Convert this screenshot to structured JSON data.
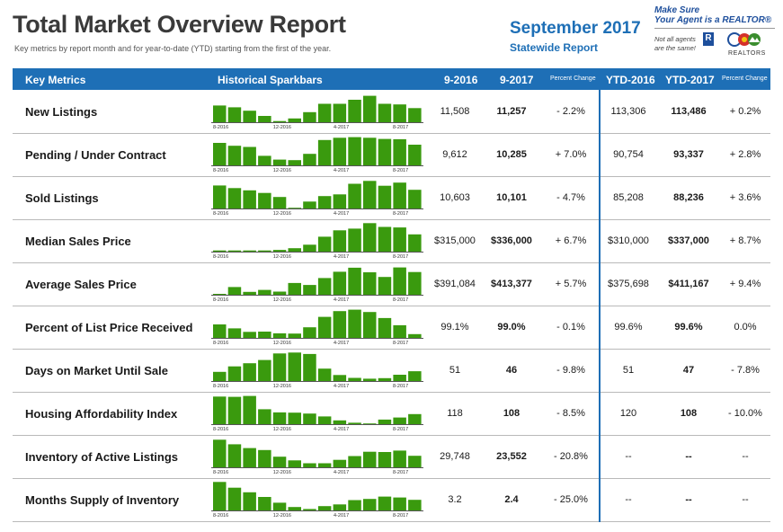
{
  "header": {
    "title": "Total Market Overview Report",
    "subtitle": "Key metrics by report month and for year-to-date (YTD) starting from the first of the year.",
    "month": "September 2017",
    "region": "Statewide Report"
  },
  "brand": {
    "line1": "Make Sure",
    "line2": "Your Agent is a REALTOR®",
    "note_line1": "Not all agents",
    "note_line2": "are the same!",
    "r_mark": "R",
    "association": "REALTORS"
  },
  "columns": {
    "metric": "Key Metrics",
    "spark": "Historical Sparkbars",
    "col_prev": "9-2016",
    "col_curr": "9-2017",
    "col_pct": "Percent Change",
    "ytd_prev": "YTD-2016",
    "ytd_curr": "YTD-2017",
    "ytd_pct": "Percent Change"
  },
  "spark_axis": [
    "8-2016",
    "12-2016",
    "4-2017",
    "8-2017"
  ],
  "colors": {
    "accent": "#1e6fb6",
    "bar": "#3a9a0e",
    "axis": "#555555"
  },
  "rows": [
    {
      "metric": "New Listings",
      "v2016": "11,508",
      "v2017": "11,257",
      "pct": "- 2.2%",
      "ytd2016": "113,306",
      "ytd2017": "113,486",
      "ytdpct": "+ 0.2%",
      "bars": [
        0.58,
        0.52,
        0.4,
        0.22,
        0.04,
        0.13,
        0.35,
        0.64,
        0.64,
        0.78,
        0.92,
        0.64,
        0.62,
        0.49
      ]
    },
    {
      "metric": "Pending / Under Contract",
      "v2016": "9,612",
      "v2017": "10,285",
      "pct": "+ 7.0%",
      "ytd2016": "90,754",
      "ytd2017": "93,337",
      "ytdpct": "+ 2.8%",
      "bars": [
        0.78,
        0.68,
        0.64,
        0.33,
        0.2,
        0.18,
        0.4,
        0.88,
        0.96,
        0.98,
        0.96,
        0.92,
        0.91,
        0.72
      ]
    },
    {
      "metric": "Sold Listings",
      "v2016": "10,603",
      "v2017": "10,101",
      "pct": "- 4.7%",
      "ytd2016": "85,208",
      "ytd2017": "88,236",
      "ytdpct": "+ 3.6%",
      "bars": [
        0.8,
        0.71,
        0.63,
        0.54,
        0.4,
        0.0,
        0.24,
        0.43,
        0.49,
        0.86,
        0.96,
        0.79,
        0.9,
        0.65
      ]
    },
    {
      "metric": "Median Sales Price",
      "v2016": "$315,000",
      "v2017": "$336,000",
      "pct": "+ 6.7%",
      "ytd2016": "$310,000",
      "ytd2017": "$337,000",
      "ytdpct": "+ 8.7%",
      "bars": [
        0.04,
        0.04,
        0.04,
        0.04,
        0.06,
        0.12,
        0.24,
        0.52,
        0.74,
        0.8,
        0.99,
        0.86,
        0.84,
        0.6
      ]
    },
    {
      "metric": "Average Sales Price",
      "v2016": "$391,084",
      "v2017": "$413,377",
      "pct": "+ 5.7%",
      "ytd2016": "$375,698",
      "ytd2017": "$411,167",
      "ytdpct": "+ 9.4%",
      "bars": [
        0.03,
        0.27,
        0.1,
        0.17,
        0.11,
        0.41,
        0.34,
        0.58,
        0.8,
        0.94,
        0.78,
        0.62,
        0.95,
        0.79
      ]
    },
    {
      "metric": "Percent of List Price Received",
      "v2016": "99.1%",
      "v2017": "99.0%",
      "pct": "- 0.1%",
      "ytd2016": "99.6%",
      "ytd2017": "99.6%",
      "ytdpct": "0.0%",
      "bars": [
        0.47,
        0.33,
        0.21,
        0.22,
        0.16,
        0.15,
        0.37,
        0.73,
        0.93,
        0.98,
        0.9,
        0.69,
        0.44,
        0.13
      ]
    },
    {
      "metric": "Days on Market Until Sale",
      "v2016": "51",
      "v2017": "46",
      "pct": "- 9.8%",
      "ytd2016": "51",
      "ytd2017": "47",
      "ytdpct": "- 7.8%",
      "bars": [
        0.32,
        0.51,
        0.62,
        0.73,
        0.96,
        0.99,
        0.94,
        0.43,
        0.21,
        0.11,
        0.08,
        0.1,
        0.22,
        0.34
      ]
    },
    {
      "metric": "Housing Affordability Index",
      "v2016": "118",
      "v2017": "108",
      "pct": "- 8.5%",
      "ytd2016": "120",
      "ytd2017": "108",
      "ytdpct": "- 10.0%",
      "bars": [
        0.96,
        0.95,
        0.98,
        0.52,
        0.41,
        0.4,
        0.37,
        0.27,
        0.13,
        0.05,
        0.01,
        0.16,
        0.23,
        0.35
      ]
    },
    {
      "metric": "Inventory of Active Listings",
      "v2016": "29,748",
      "v2017": "23,552",
      "pct": "- 20.8%",
      "ytd2016": "--",
      "ytd2017": "--",
      "ytdpct": "--",
      "bars": [
        0.96,
        0.8,
        0.67,
        0.6,
        0.37,
        0.24,
        0.14,
        0.14,
        0.26,
        0.39,
        0.54,
        0.53,
        0.58,
        0.4
      ]
    },
    {
      "metric": "Months Supply of Inventory",
      "v2016": "3.2",
      "v2017": "2.4",
      "pct": "- 25.0%",
      "ytd2016": "--",
      "ytd2017": "--",
      "ytdpct": "--",
      "bars": [
        0.99,
        0.79,
        0.63,
        0.47,
        0.27,
        0.12,
        0.05,
        0.15,
        0.21,
        0.36,
        0.4,
        0.48,
        0.45,
        0.37
      ]
    }
  ]
}
